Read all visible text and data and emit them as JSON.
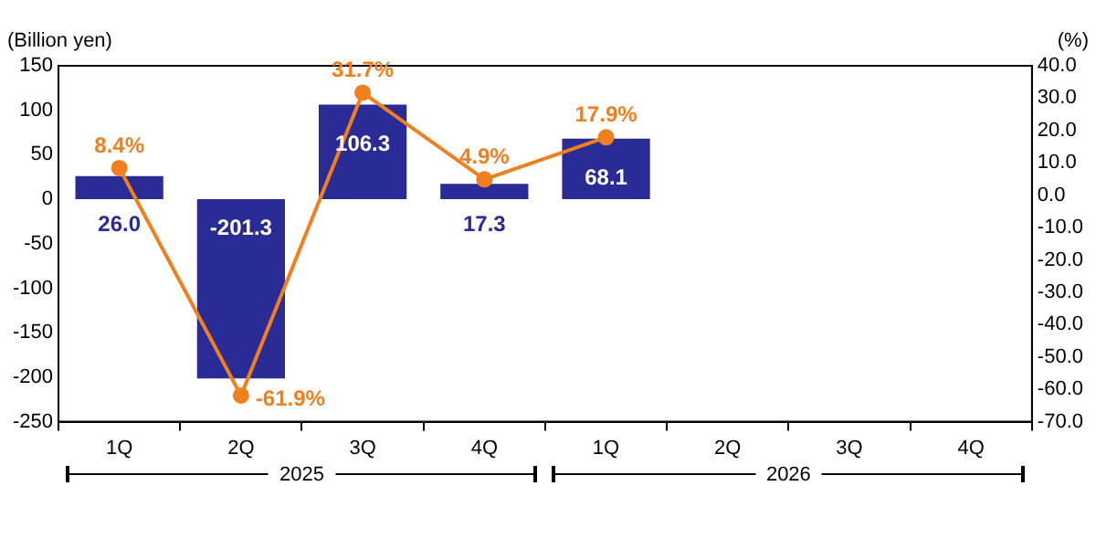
{
  "chart_data": {
    "type": "bar",
    "ylabel": "(Billion yen)",
    "y2label": "(%)",
    "categories": [
      "1Q",
      "2Q",
      "3Q",
      "4Q",
      "1Q",
      "2Q",
      "3Q",
      "4Q"
    ],
    "series": [
      {
        "color": "#2b2b96",
        "values": [
          26.0,
          -201.3,
          106.3,
          17.3,
          68.1,
          null,
          null,
          null
        ],
        "value_labels": [
          "26.0",
          "-201.3",
          "106.3",
          "17.3",
          "68.1",
          null,
          null,
          null
        ]
      },
      {
        "type": "line",
        "axis": "y2",
        "color": "#f07f1e",
        "marker": "circle",
        "values": [
          8.4,
          -61.9,
          31.7,
          4.9,
          17.9,
          null,
          null,
          null
        ],
        "value_labels": [
          "8.4%",
          "-61.9%",
          "31.7%",
          "4.9%",
          "17.9%",
          null,
          null,
          null
        ]
      }
    ],
    "ylim": [
      -250,
      150
    ],
    "yticks": [
      -250,
      -200,
      -150,
      -100,
      -50,
      0,
      50,
      100,
      150
    ],
    "y2lim": [
      -70,
      40
    ],
    "y2ticks": [
      {
        "value": -70,
        "label": "-70.0"
      },
      {
        "value": -60,
        "label": "-60.0"
      },
      {
        "value": -50,
        "label": "-50.0"
      },
      {
        "value": -40,
        "label": "-40.0"
      },
      {
        "value": -30,
        "label": "-30.0"
      },
      {
        "value": -20,
        "label": "-20.0"
      },
      {
        "value": -10,
        "label": "-10.0"
      },
      {
        "value": 0,
        "label": "0.0"
      },
      {
        "value": 10,
        "label": "10.0"
      },
      {
        "value": 20,
        "label": "20.0"
      },
      {
        "value": 30,
        "label": "30.0"
      },
      {
        "value": 40,
        "label": "40.0"
      }
    ],
    "annotations": [
      "2025",
      "2026"
    ],
    "grid": false,
    "legend": false
  }
}
